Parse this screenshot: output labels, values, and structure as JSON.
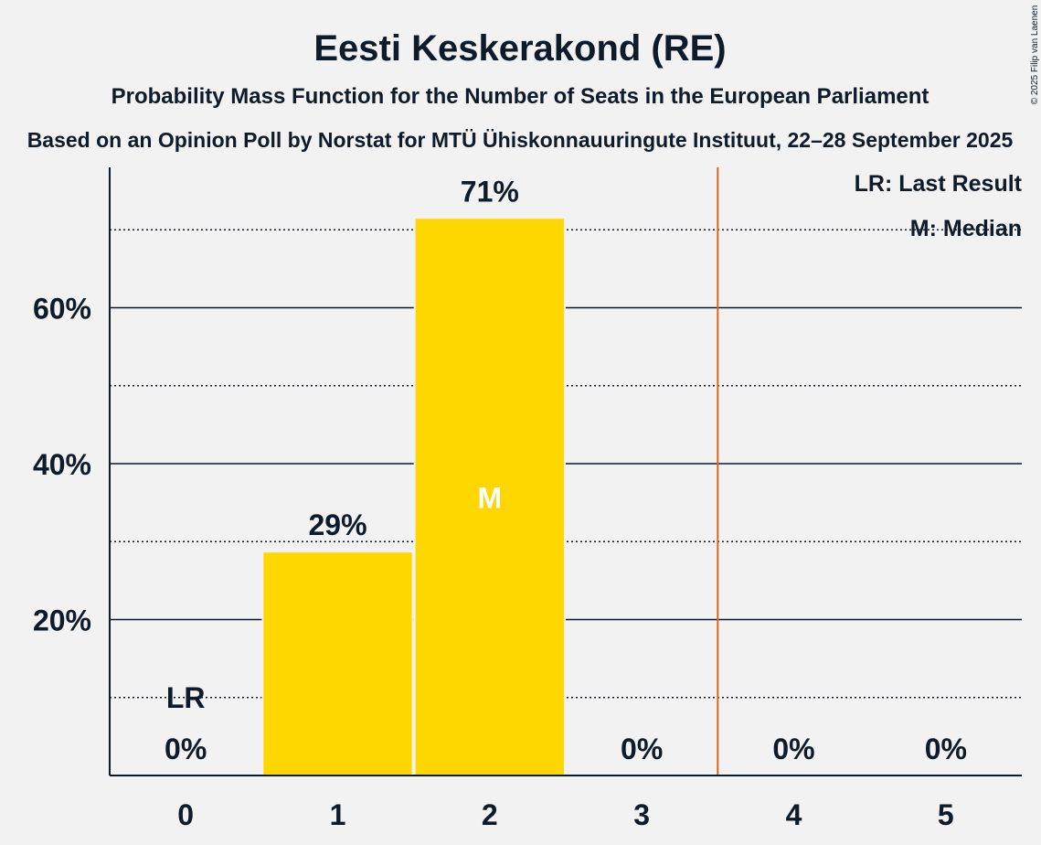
{
  "chart_data": {
    "type": "bar",
    "title": "Eesti Keskerakond (RE)",
    "subtitle": "Probability Mass Function for the Number of Seats in the European Parliament",
    "source": "Based on an Opinion Poll by Norstat for MTÜ Ühiskonnauuringute Instituut, 22–28 September 2025",
    "copyright": "© 2025 Filip van Laenen",
    "categories": [
      "0",
      "1",
      "2",
      "3",
      "4",
      "5"
    ],
    "values": [
      0,
      28.6,
      71.4,
      0,
      0,
      0
    ],
    "value_labels": [
      "0%",
      "29%",
      "71%",
      "0%",
      "0%",
      "0%"
    ],
    "ylim": [
      0,
      78
    ],
    "yticks": [
      20,
      40,
      60
    ],
    "ytick_labels": [
      "20%",
      "40%",
      "60%"
    ],
    "dotted_gridlines": [
      10,
      30,
      50,
      70
    ],
    "last_result": {
      "category": "0",
      "marker": "LR"
    },
    "median": {
      "category": "2",
      "marker": "M"
    },
    "majority_line_after_category": "3",
    "legend": {
      "placement": "top-right",
      "items": [
        "LR: Last Result",
        "M: Median"
      ]
    },
    "colors": {
      "bar": "#ffd700",
      "background": "#f2f2f2",
      "text": "#0d1b2a",
      "majority_line": "#d2691e"
    }
  }
}
